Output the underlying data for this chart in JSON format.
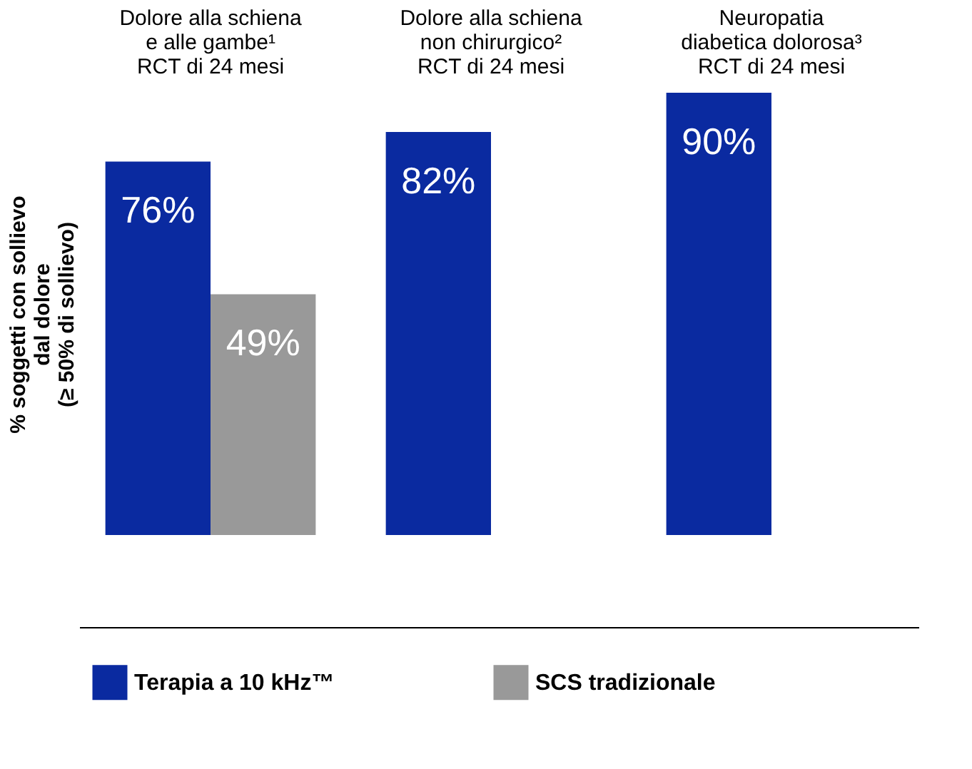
{
  "chart_data": {
    "type": "bar",
    "categories": [
      "Dolore alla schiena\ne alle gambe¹\nRCT di 24 mesi",
      "Dolore alla schiena\nnon chirurgico²\nRCT di 24 mesi",
      "Neuropatia\ndiabetica dolorosa³\nRCT di 24 mesi"
    ],
    "ylabel": "% soggetti con sollievo\ndal dolore\n(≥ 50% di sollievo)",
    "series": [
      {
        "name": "Terapia a 10 kHz™",
        "color": "#0a2aa0",
        "values": [
          76,
          82,
          90
        ],
        "value_labels": [
          "76%",
          "82%",
          "90%"
        ]
      },
      {
        "name": "SCS tradizionale",
        "color": "#999999",
        "values": [
          49,
          null,
          null
        ],
        "value_labels": [
          "49%",
          null,
          null
        ]
      }
    ],
    "tick_labels": "x",
    "legend": "bottom"
  }
}
